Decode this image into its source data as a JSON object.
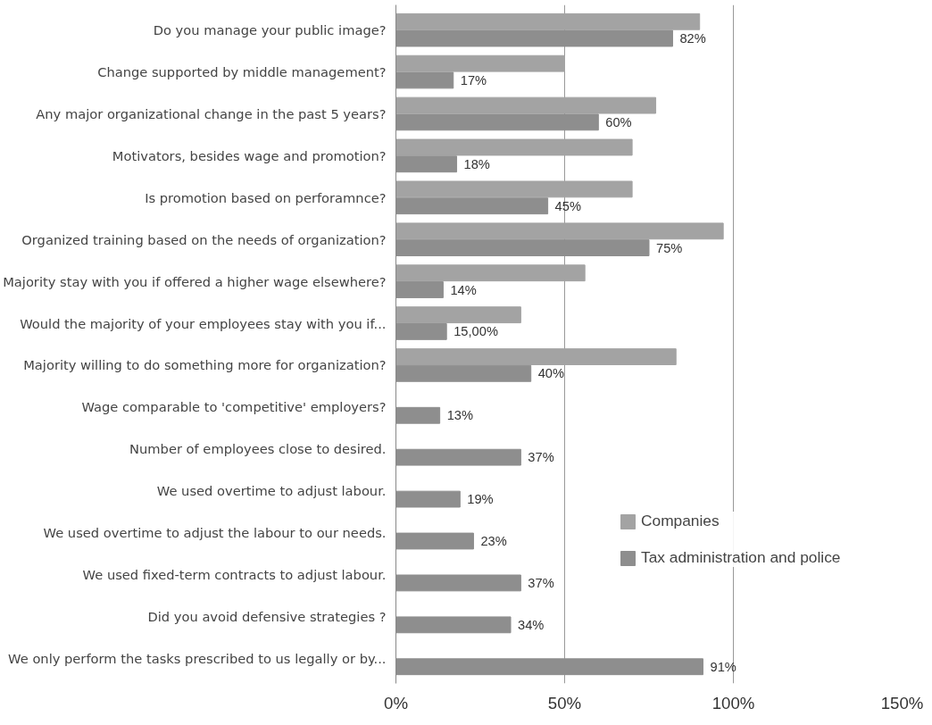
{
  "chart_data": {
    "type": "bar",
    "orientation": "horizontal",
    "categories": [
      "Do you manage your public image?",
      "Change supported by middle management?",
      "Any major organizational change in the past 5 years?",
      "Motivators, besides wage and promotion?",
      "Is promotion based on perforamnce?",
      "Organized training based on the needs of organization?",
      "Majority stay with you if offered a higher wage elsewhere?",
      "Would the majority of your employees stay with you if...",
      "Majority willing to do something more for organization?",
      "Wage comparable to 'competitive' employers?",
      "Number of employees close to desired.",
      "We used overtime to adjust labour.",
      "We used overtime to adjust the labour to our needs.",
      "We used fixed-term contracts to adjust labour.",
      "Did you avoid defensive strategies ?",
      "We only perform the tasks prescribed to us legally or by..."
    ],
    "series": [
      {
        "name": "Companies",
        "color": "#a3a3a3",
        "values": [
          90,
          50,
          77,
          70,
          70,
          97,
          56,
          37,
          83,
          null,
          null,
          null,
          null,
          null,
          null,
          null
        ]
      },
      {
        "name": "Tax administration and police",
        "color": "#8e8e8e",
        "values": [
          82,
          17,
          60,
          18,
          45,
          75,
          14,
          15,
          40,
          13,
          37,
          19,
          23,
          37,
          34,
          91
        ],
        "value_labels": [
          "82%",
          "17%",
          "60%",
          "18%",
          "45%",
          "75%",
          "14%",
          "15,00%",
          "40%",
          "13%",
          "37%",
          "19%",
          "23%",
          "37%",
          "34%",
          "91%"
        ]
      }
    ],
    "xlim": [
      0,
      150
    ],
    "xticks": [
      {
        "value": 0,
        "label": "0%"
      },
      {
        "value": 50,
        "label": "50%"
      },
      {
        "value": 100,
        "label": "100%"
      },
      {
        "value": 150,
        "label": "150%"
      }
    ],
    "grid": "x",
    "legend": "right"
  }
}
